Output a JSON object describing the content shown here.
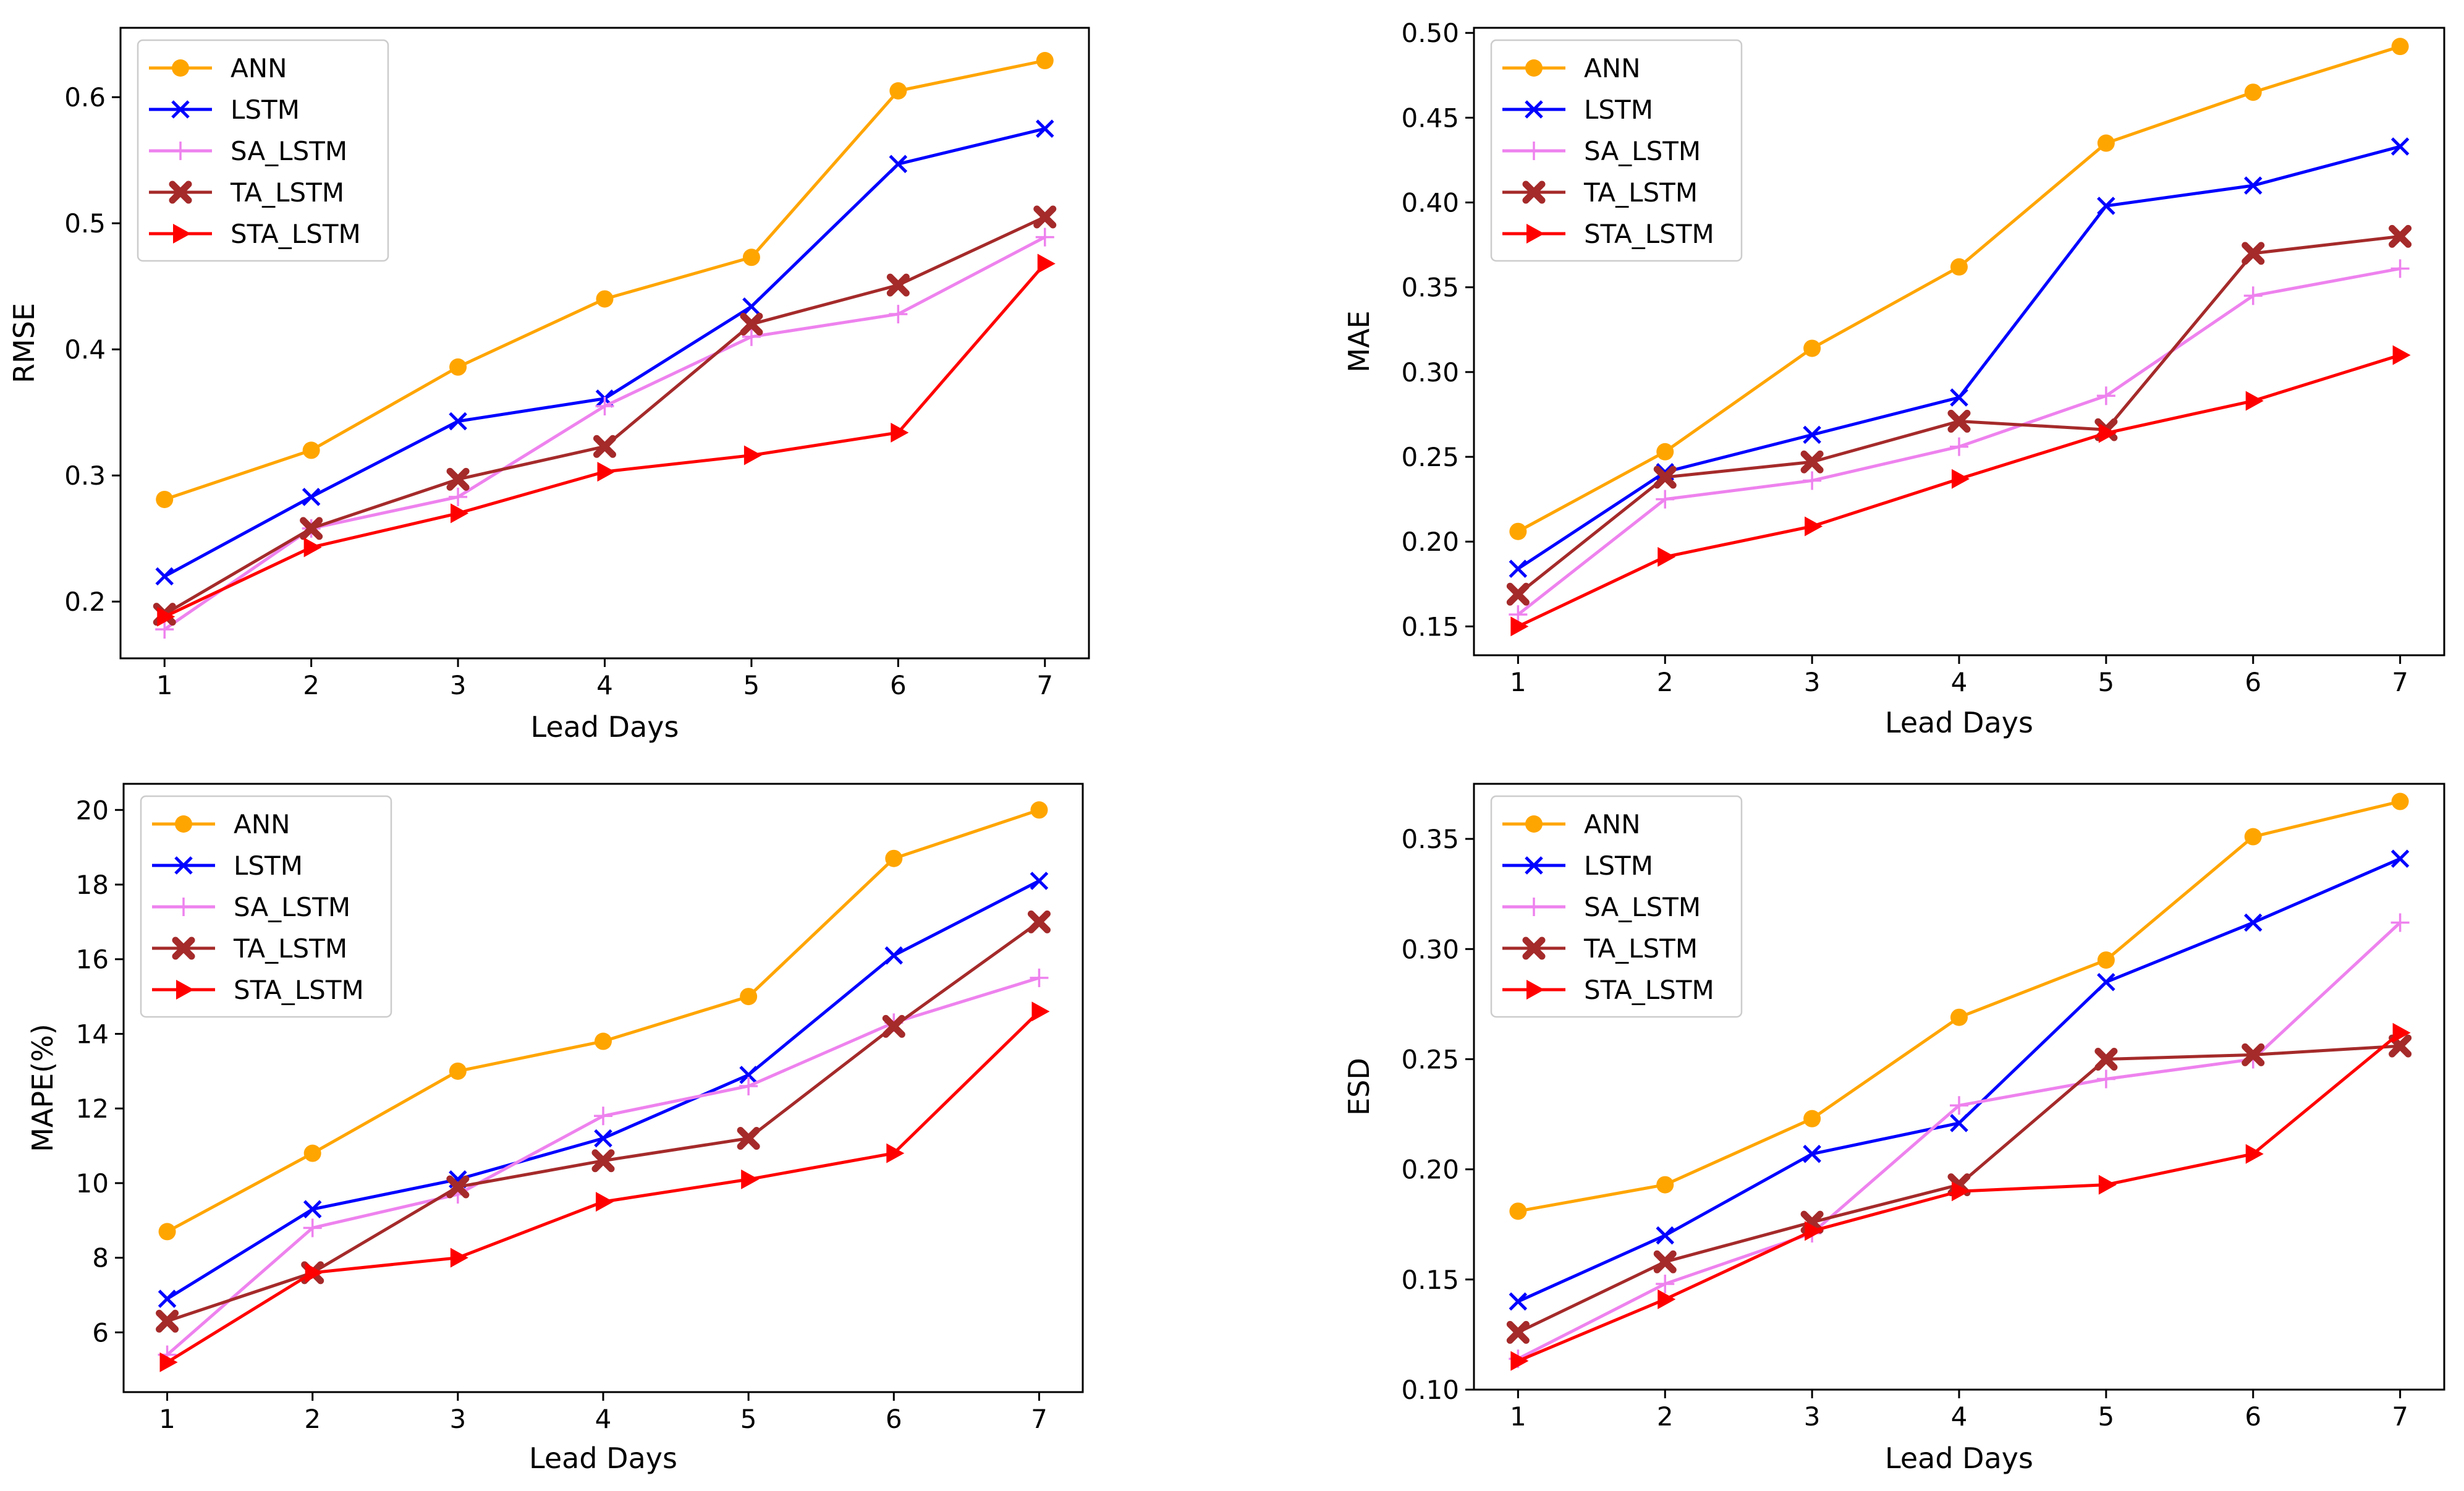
{
  "chart_data": [
    {
      "type": "line",
      "title": "",
      "xlabel": "Lead Days",
      "ylabel": "RMSE",
      "x": [
        1,
        2,
        3,
        4,
        5,
        6,
        7
      ],
      "xlim": [
        0.7,
        7.3
      ],
      "ylim": [
        0.155,
        0.655
      ],
      "yticks": [
        0.2,
        0.3,
        0.4,
        0.5,
        0.6
      ],
      "ytick_labels": [
        "0.2",
        "0.3",
        "0.4",
        "0.5",
        "0.6"
      ],
      "legend_position": "top-left",
      "series": [
        {
          "name": "ANN",
          "values": [
            0.281,
            0.32,
            0.386,
            0.44,
            0.473,
            0.605,
            0.629
          ]
        },
        {
          "name": "LSTM",
          "values": [
            0.22,
            0.283,
            0.343,
            0.361,
            0.434,
            0.547,
            0.575
          ]
        },
        {
          "name": "SA_LSTM",
          "values": [
            0.178,
            0.258,
            0.283,
            0.355,
            0.41,
            0.428,
            0.489
          ]
        },
        {
          "name": "TA_LSTM",
          "values": [
            0.19,
            0.258,
            0.297,
            0.323,
            0.42,
            0.451,
            0.505
          ]
        },
        {
          "name": "STA_LSTM",
          "values": [
            0.188,
            0.243,
            0.27,
            0.303,
            0.316,
            0.334,
            0.468
          ]
        }
      ]
    },
    {
      "type": "line",
      "title": "",
      "xlabel": "Lead Days",
      "ylabel": "MAE",
      "x": [
        1,
        2,
        3,
        4,
        5,
        6,
        7
      ],
      "xlim": [
        0.7,
        7.3
      ],
      "ylim": [
        0.133,
        0.503
      ],
      "yticks": [
        0.15,
        0.2,
        0.25,
        0.3,
        0.35,
        0.4,
        0.45,
        0.5
      ],
      "ytick_labels": [
        "0.15",
        "0.20",
        "0.25",
        "0.30",
        "0.35",
        "0.40",
        "0.45",
        "0.50"
      ],
      "legend_position": "top-left",
      "series": [
        {
          "name": "ANN",
          "values": [
            0.206,
            0.253,
            0.314,
            0.362,
            0.435,
            0.465,
            0.492
          ]
        },
        {
          "name": "LSTM",
          "values": [
            0.184,
            0.241,
            0.263,
            0.285,
            0.398,
            0.41,
            0.433
          ]
        },
        {
          "name": "SA_LSTM",
          "values": [
            0.157,
            0.225,
            0.236,
            0.256,
            0.286,
            0.345,
            0.361
          ]
        },
        {
          "name": "TA_LSTM",
          "values": [
            0.169,
            0.238,
            0.247,
            0.271,
            0.266,
            0.37,
            0.38
          ]
        },
        {
          "name": "STA_LSTM",
          "values": [
            0.15,
            0.191,
            0.209,
            0.237,
            0.264,
            0.283,
            0.31
          ]
        }
      ]
    },
    {
      "type": "line",
      "title": "",
      "xlabel": "Lead Days",
      "ylabel": "MAPE(%)",
      "x": [
        1,
        2,
        3,
        4,
        5,
        6,
        7
      ],
      "xlim": [
        0.7,
        7.3
      ],
      "ylim": [
        4.4,
        20.7
      ],
      "yticks": [
        6,
        8,
        10,
        12,
        14,
        16,
        18,
        20
      ],
      "ytick_labels": [
        "6",
        "8",
        "10",
        "12",
        "14",
        "16",
        "18",
        "20"
      ],
      "legend_position": "top-left",
      "series": [
        {
          "name": "ANN",
          "values": [
            8.7,
            10.8,
            13.0,
            13.8,
            15.0,
            18.7,
            20.0
          ]
        },
        {
          "name": "LSTM",
          "values": [
            6.9,
            9.3,
            10.1,
            11.2,
            12.9,
            16.1,
            18.1
          ]
        },
        {
          "name": "SA_LSTM",
          "values": [
            5.4,
            8.8,
            9.7,
            11.8,
            12.6,
            14.3,
            15.5
          ]
        },
        {
          "name": "TA_LSTM",
          "values": [
            6.3,
            7.6,
            9.9,
            10.6,
            11.2,
            14.2,
            17.0
          ]
        },
        {
          "name": "STA_LSTM",
          "values": [
            5.2,
            7.6,
            8.0,
            9.5,
            10.1,
            10.8,
            14.6
          ]
        }
      ]
    },
    {
      "type": "line",
      "title": "",
      "xlabel": "Lead Days",
      "ylabel": "ESD",
      "x": [
        1,
        2,
        3,
        4,
        5,
        6,
        7
      ],
      "xlim": [
        0.7,
        7.3
      ],
      "ylim": [
        0.1,
        0.375
      ],
      "yticks": [
        0.1,
        0.15,
        0.2,
        0.25,
        0.3,
        0.35
      ],
      "ytick_labels": [
        "0.10",
        "0.15",
        "0.20",
        "0.25",
        "0.30",
        "0.35"
      ],
      "legend_position": "top-left",
      "series": [
        {
          "name": "ANN",
          "values": [
            0.181,
            0.193,
            0.223,
            0.269,
            0.295,
            0.351,
            0.367
          ]
        },
        {
          "name": "LSTM",
          "values": [
            0.14,
            0.17,
            0.207,
            0.221,
            0.285,
            0.312,
            0.341
          ]
        },
        {
          "name": "SA_LSTM",
          "values": [
            0.114,
            0.148,
            0.171,
            0.229,
            0.241,
            0.25,
            0.312
          ]
        },
        {
          "name": "TA_LSTM",
          "values": [
            0.126,
            0.158,
            0.176,
            0.193,
            0.25,
            0.252,
            0.256
          ]
        },
        {
          "name": "STA_LSTM",
          "values": [
            0.113,
            0.141,
            0.172,
            0.19,
            0.193,
            0.207,
            0.262
          ]
        }
      ]
    }
  ],
  "series_styles": [
    {
      "name": "ANN",
      "color": "#FFA500",
      "marker": "circle"
    },
    {
      "name": "LSTM",
      "color": "#0000FF",
      "marker": "x"
    },
    {
      "name": "SA_LSTM",
      "color": "#EE82EE",
      "marker": "plus"
    },
    {
      "name": "TA_LSTM",
      "color": "#A52A2A",
      "marker": "filled-x"
    },
    {
      "name": "STA_LSTM",
      "color": "#FF0000",
      "marker": "triangle-right"
    }
  ]
}
